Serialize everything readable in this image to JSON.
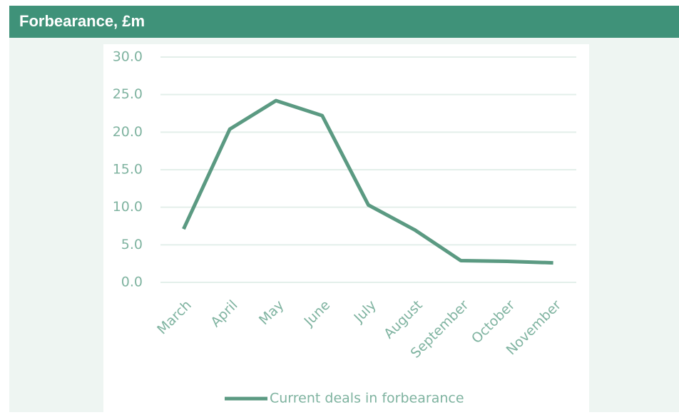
{
  "chart_data": {
    "type": "line",
    "title": "Forbearance, £m",
    "categories": [
      "March",
      "April",
      "May",
      "June",
      "July",
      "August",
      "September",
      "October",
      "November"
    ],
    "series": [
      {
        "name": "Current deals in forbearance",
        "color": "#5b9a82",
        "values": [
          7.1,
          20.4,
          24.2,
          22.2,
          10.3,
          7.0,
          2.9,
          2.8,
          2.6
        ]
      }
    ],
    "ylim": [
      0,
      30
    ],
    "yticks": [
      {
        "value": 0,
        "label": "0.0"
      },
      {
        "value": 5,
        "label": "5.0"
      },
      {
        "value": 10,
        "label": "10.0"
      },
      {
        "value": 15,
        "label": "15.0"
      },
      {
        "value": 20,
        "label": "20.0"
      },
      {
        "value": 25,
        "label": "25.0"
      },
      {
        "value": 30,
        "label": "30.0"
      }
    ],
    "grid": true,
    "legend": "bottom"
  }
}
